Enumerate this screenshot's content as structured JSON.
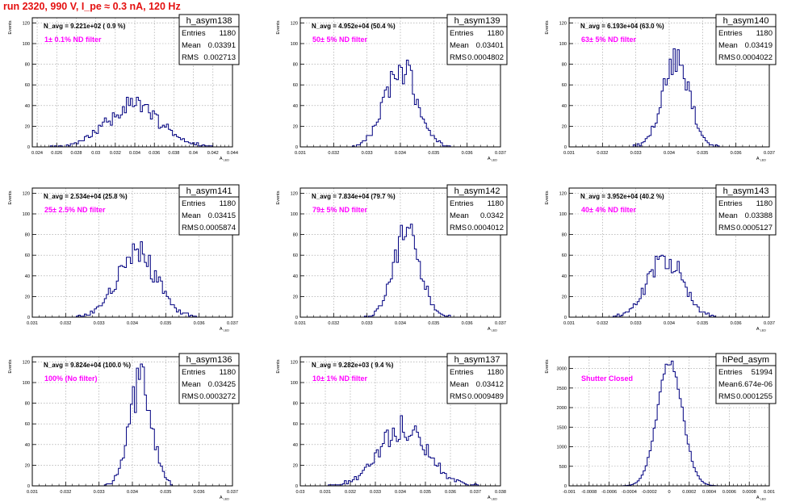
{
  "run_title": "run 2320,   990 V, I_pe ≈ 0.3 nA, 120 Hz",
  "chart_data": [
    {
      "type": "histogram",
      "name": "h_asym138",
      "navg": "N_avg = 9.221e+02 ( 0.9 %)",
      "filter": "1± 0.1% ND filter",
      "stats": [
        [
          "Entries",
          "1180"
        ],
        [
          "Mean",
          "0.03391"
        ],
        [
          "RMS",
          "0.002713"
        ]
      ],
      "xlim": [
        0.0235,
        0.044
      ],
      "xticks": [
        0.024,
        0.026,
        0.028,
        0.03,
        0.032,
        0.034,
        0.036,
        0.038,
        0.04,
        0.042,
        0.044
      ],
      "xticklabels": [
        "0.024",
        "0.026",
        "0.028",
        "0.03",
        "0.032",
        "0.034",
        "0.036",
        "0.038",
        "0.04",
        "0.042",
        "0.044"
      ],
      "ylim": [
        0,
        125
      ],
      "yticks": [
        0,
        20,
        40,
        60,
        80,
        100,
        120
      ],
      "ylabel": "Events",
      "xlabel": "A_LED",
      "mean": 0.03391,
      "rms": 0.002713,
      "peak": 40,
      "seed": 11
    },
    {
      "type": "histogram",
      "name": "h_asym139",
      "navg": "N_avg = 4.952e+04 (50.4 %)",
      "filter": "50± 5% ND filter",
      "stats": [
        [
          "Entries",
          "1180"
        ],
        [
          "Mean",
          "0.03401"
        ],
        [
          "RMS",
          "0.0004802"
        ]
      ],
      "xlim": [
        0.031,
        0.037
      ],
      "xticks": [
        0.031,
        0.032,
        0.033,
        0.034,
        0.035,
        0.036,
        0.037
      ],
      "xticklabels": [
        "0.031",
        "0.032",
        "0.033",
        "0.034",
        "0.035",
        "0.036",
        "0.037"
      ],
      "ylim": [
        0,
        125
      ],
      "yticks": [
        0,
        20,
        40,
        60,
        80,
        100,
        120
      ],
      "ylabel": "Events",
      "xlabel": "A_LED",
      "mean": 0.03401,
      "rms": 0.00048,
      "peak": 76,
      "seed": 23
    },
    {
      "type": "histogram",
      "name": "h_asym140",
      "navg": "N_avg = 6.193e+04 (63.0 %)",
      "filter": "63± 5% ND filter",
      "stats": [
        [
          "Entries",
          "1180"
        ],
        [
          "Mean",
          "0.03419"
        ],
        [
          "RMS",
          "0.0004022"
        ]
      ],
      "xlim": [
        0.031,
        0.037
      ],
      "xticks": [
        0.031,
        0.032,
        0.033,
        0.034,
        0.035,
        0.036,
        0.037
      ],
      "xticklabels": [
        "0.031",
        "0.032",
        "0.033",
        "0.034",
        "0.035",
        "0.036",
        "0.037"
      ],
      "ylim": [
        0,
        125
      ],
      "yticks": [
        0,
        20,
        40,
        60,
        80,
        100,
        120
      ],
      "ylabel": "Events",
      "xlabel": "A_LED",
      "mean": 0.03419,
      "rms": 0.0004,
      "peak": 84,
      "seed": 37
    },
    {
      "type": "histogram",
      "name": "h_asym141",
      "navg": "N_avg = 2.534e+04 (25.8 %)",
      "filter": "25± 2.5% ND filter",
      "stats": [
        [
          "Entries",
          "1180"
        ],
        [
          "Mean",
          "0.03415"
        ],
        [
          "RMS",
          "0.0005874"
        ]
      ],
      "xlim": [
        0.031,
        0.037
      ],
      "xticks": [
        0.031,
        0.032,
        0.033,
        0.034,
        0.035,
        0.036,
        0.037
      ],
      "xticklabels": [
        "0.031",
        "0.032",
        "0.033",
        "0.034",
        "0.035",
        "0.036",
        "0.037"
      ],
      "ylim": [
        0,
        125
      ],
      "yticks": [
        0,
        20,
        40,
        60,
        80,
        100,
        120
      ],
      "ylabel": "Events",
      "xlabel": "A_LED",
      "mean": 0.03415,
      "rms": 0.00059,
      "peak": 62,
      "seed": 41
    },
    {
      "type": "histogram",
      "name": "h_asym142",
      "navg": "N_avg = 7.834e+04 (79.7 %)",
      "filter": "79± 5% ND filter",
      "stats": [
        [
          "Entries",
          "1180"
        ],
        [
          "Mean",
          "0.0342"
        ],
        [
          "RMS",
          "0.0004012"
        ]
      ],
      "xlim": [
        0.031,
        0.037
      ],
      "xticks": [
        0.031,
        0.032,
        0.033,
        0.034,
        0.035,
        0.036,
        0.037
      ],
      "xticklabels": [
        "0.031",
        "0.032",
        "0.033",
        "0.034",
        "0.035",
        "0.036",
        "0.037"
      ],
      "ylim": [
        0,
        125
      ],
      "yticks": [
        0,
        20,
        40,
        60,
        80,
        100,
        120
      ],
      "ylabel": "Events",
      "xlabel": "A_LED",
      "mean": 0.0342,
      "rms": 0.0004,
      "peak": 82,
      "seed": 53
    },
    {
      "type": "histogram",
      "name": "h_asym143",
      "navg": "N_avg = 3.952e+04 (40.2 %)",
      "filter": "40± 4% ND filter",
      "stats": [
        [
          "Entries",
          "1180"
        ],
        [
          "Mean",
          "0.03388"
        ],
        [
          "RMS",
          "0.0005127"
        ]
      ],
      "xlim": [
        0.031,
        0.037
      ],
      "xticks": [
        0.031,
        0.032,
        0.033,
        0.034,
        0.035,
        0.036,
        0.037
      ],
      "xticklabels": [
        "0.031",
        "0.032",
        "0.033",
        "0.034",
        "0.035",
        "0.036",
        "0.037"
      ],
      "ylim": [
        0,
        125
      ],
      "yticks": [
        0,
        20,
        40,
        60,
        80,
        100,
        120
      ],
      "ylabel": "Events",
      "xlabel": "A_LED",
      "mean": 0.03388,
      "rms": 0.00051,
      "peak": 60,
      "seed": 67
    },
    {
      "type": "histogram",
      "name": "h_asym136",
      "navg": "N_avg = 9.824e+04 (100.0 %)",
      "filter": "100% (No filter)",
      "stats": [
        [
          "Entries",
          "1180"
        ],
        [
          "Mean",
          "0.03425"
        ],
        [
          "RMS",
          "0.0003272"
        ]
      ],
      "xlim": [
        0.031,
        0.037
      ],
      "xticks": [
        0.031,
        0.032,
        0.033,
        0.034,
        0.035,
        0.036,
        0.037
      ],
      "xticklabels": [
        "0.031",
        "0.032",
        "0.033",
        "0.034",
        "0.035",
        "0.036",
        "0.037"
      ],
      "ylim": [
        0,
        125
      ],
      "yticks": [
        0,
        20,
        40,
        60,
        80,
        100,
        120
      ],
      "ylabel": "Events",
      "xlabel": "A_LED",
      "mean": 0.03425,
      "rms": 0.00033,
      "peak": 102,
      "seed": 79
    },
    {
      "type": "histogram",
      "name": "h_asym137",
      "navg": "N_avg = 9.282e+03 ( 9.4 %)",
      "filter": "10± 1% ND filter",
      "stats": [
        [
          "Entries",
          "1180"
        ],
        [
          "Mean",
          "0.03412"
        ],
        [
          "RMS",
          "0.0009489"
        ]
      ],
      "xlim": [
        0.03,
        0.038
      ],
      "xticks": [
        0.03,
        0.031,
        0.032,
        0.033,
        0.034,
        0.035,
        0.036,
        0.037,
        0.038
      ],
      "xticklabels": [
        "0.03",
        "0.031",
        "0.032",
        "0.033",
        "0.034",
        "0.035",
        "0.036",
        "0.037",
        "0.038"
      ],
      "ylim": [
        0,
        125
      ],
      "yticks": [
        0,
        20,
        40,
        60,
        80,
        100,
        120
      ],
      "ylabel": "Events",
      "xlabel": "A_LED",
      "mean": 0.03412,
      "rms": 0.00095,
      "peak": 56,
      "seed": 83
    },
    {
      "type": "histogram",
      "name": "hPed_asym",
      "navg": "",
      "filter": "Shutter Closed",
      "stats": [
        [
          "Entries",
          "51994"
        ],
        [
          "Mean",
          "6.674e-06"
        ],
        [
          "RMS",
          "0.0001255"
        ]
      ],
      "xlim": [
        -0.001,
        0.001
      ],
      "xticks": [
        -0.001,
        -0.0008,
        -0.0006,
        -0.0004,
        -0.0002,
        0,
        0.0002,
        0.0004,
        0.0006,
        0.0008,
        0.001
      ],
      "xticklabels": [
        "-0.001",
        "-0.0008",
        "-0.0006",
        "-0.0004",
        "-0.0002",
        "0",
        "0.0002",
        "0.0004",
        "0.0006",
        "0.0008",
        "0.001"
      ],
      "ylim": [
        0,
        3300
      ],
      "yticks": [
        0,
        500,
        1000,
        1500,
        2000,
        2500,
        3000
      ],
      "ylabel": "Events",
      "xlabel": "A_LED",
      "mean": 6.7e-06,
      "rms": 0.0001255,
      "peak": 3150,
      "seed": 97
    }
  ],
  "colors": {
    "series": "#000080",
    "title": "#e41010",
    "filter": "#ff00ff",
    "grid": "#9a9a9a",
    "axis": "#000000"
  }
}
